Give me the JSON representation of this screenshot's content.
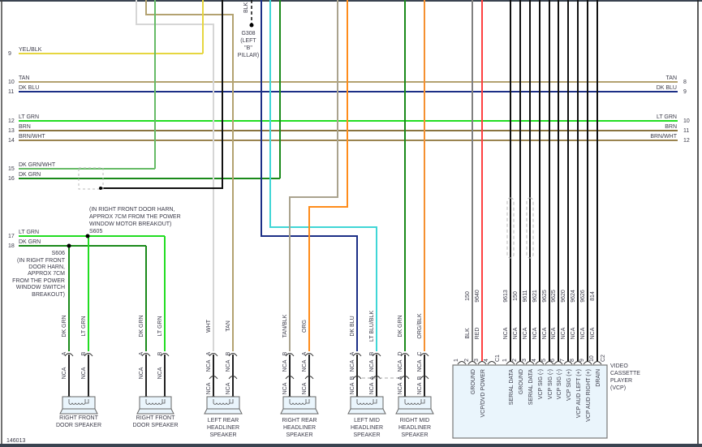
{
  "figure_id": "146013",
  "wire_colors": {
    "TAN": "#b3a270",
    "BRN": "#8a7440",
    "BRN/WHT": "#9a8450",
    "DK BLU": "#1c2f86",
    "LT GRN": "#22dd22",
    "DK GRN": "#1a8a1a",
    "DK GRN/WHT": "#66bb66",
    "YEL/BLK": "#e6d640",
    "WHT": "#d6d6d6",
    "ORG": "#ff8c1a",
    "ORG/BLK": "#f59030",
    "LT BLU/BLK": "#40d6d6",
    "TAN/BLK": "#aaa38e",
    "BLK": "#111111",
    "GRAY": "#808080",
    "RED": "#ff4040"
  },
  "harness_left": [
    {
      "pin": "9",
      "label": "YEL/BLK"
    },
    {
      "pin": "10",
      "label": "TAN"
    },
    {
      "pin": "11",
      "label": "DK BLU"
    },
    {
      "pin": "12",
      "label": "LT GRN"
    },
    {
      "pin": "13",
      "label": "BRN"
    },
    {
      "pin": "14",
      "label": "BRN/WHT"
    },
    {
      "pin": "15",
      "label": "DK GRN/WHT"
    },
    {
      "pin": "16",
      "label": "DK GRN"
    },
    {
      "pin": "17",
      "label": "LT GRN"
    },
    {
      "pin": "18",
      "label": "DK GRN"
    }
  ],
  "harness_right": [
    {
      "pin": "8",
      "label": "TAN"
    },
    {
      "pin": "9",
      "label": "DK BLU"
    },
    {
      "pin": "10",
      "label": "LT GRN"
    },
    {
      "pin": "11",
      "label": "BRN"
    },
    {
      "pin": "12",
      "label": "BRN/WHT"
    }
  ],
  "ground": {
    "wire": "BLK",
    "id": "G308",
    "note": [
      "(LEFT",
      "\"B\"",
      "PILLAR)"
    ]
  },
  "splice_s605": {
    "id": "S605",
    "note": [
      "(IN RIGHT FRONT DOOR HARN,",
      "APPROX 7CM FROM THE POWER",
      "WINDOW MOTOR BREAKOUT)"
    ]
  },
  "splice_s606": {
    "id": "S606",
    "note": [
      "(IN RIGHT FRONT",
      "DOOR HARN,",
      "APPROX 7CM",
      "FROM THE POWER",
      "WINDOW SWITCH",
      "BREAKOUT)"
    ]
  },
  "speakers": [
    {
      "name": [
        "RIGHT FRONT",
        "DOOR SPEAKER"
      ],
      "pins": [
        {
          "letter": "A",
          "color": "DK GRN",
          "lower": "NCA"
        },
        {
          "letter": "B",
          "color": "LT GRN",
          "lower": "NCA"
        }
      ]
    },
    {
      "name": [
        "RIGHT FRONT",
        "DOOR SPEAKER"
      ],
      "pins": [
        {
          "letter": "A",
          "color": "DK GRN",
          "lower": "NCA"
        },
        {
          "letter": "B",
          "color": "LT GRN",
          "lower": "NCA"
        }
      ]
    },
    {
      "name": [
        "LEFT REAR",
        "HEADLINER",
        "SPEAKER"
      ],
      "pins": [
        {
          "letter": "A",
          "color": "WHT",
          "mid": "NCA",
          "lower": "NCA"
        },
        {
          "letter": "B",
          "color": "TAN",
          "mid": "NCA",
          "lower": "NCA"
        }
      ]
    },
    {
      "name": [
        "RIGHT REAR",
        "HEADLINER",
        "SPEAKER"
      ],
      "pins": [
        {
          "letter": "B",
          "color": "TAN/BLK",
          "mid": "NCA",
          "lower": "NCA"
        },
        {
          "letter": "A",
          "color": "ORG",
          "mid": "NCA",
          "lower": "NCA"
        }
      ]
    },
    {
      "name": [
        "LEFT MID",
        "HEADLINER",
        "SPEAKER"
      ],
      "pins": [
        {
          "letter": "A",
          "color": "DK BLU",
          "mid": "NCA",
          "lower": "NCA",
          "lower_letter": "B"
        },
        {
          "letter": "B",
          "color": "LT BLU/BLK",
          "mid": "NCA",
          "lower": "NCA",
          "lower_letter": "A"
        }
      ]
    },
    {
      "name": [
        "RIGHT MID",
        "HEADLINER",
        "SPEAKER"
      ],
      "pins": [
        {
          "letter": "D",
          "color": "DK GRN",
          "mid": "NCA",
          "lower": "NCA",
          "lower_letter": "A"
        },
        {
          "letter": "C",
          "color": "ORG/BLK",
          "mid": "NCA",
          "lower": "NCA",
          "lower_letter": "B"
        }
      ]
    }
  ],
  "vcp": {
    "title": [
      "VIDEO",
      "CASSETTE",
      "PLAYER",
      "(VCP)"
    ],
    "connector_c1": "C1",
    "connector_c2": "C2",
    "c1_pins": [
      {
        "pin": "1",
        "circuit": "",
        "color": "",
        "function": ""
      },
      {
        "pin": "2",
        "circuit": "150",
        "color": "BLK",
        "function": "GROUND"
      },
      {
        "pin": "3",
        "circuit": "9640",
        "color": "RED",
        "function": "VCP/DVD POWER"
      },
      {
        "pin": "4",
        "circuit": "",
        "color": "",
        "function": ""
      }
    ],
    "c2_pins": [
      {
        "pin": "1",
        "circuit": "9613",
        "color": "NCA",
        "function": "SERIAL DATA"
      },
      {
        "pin": "2",
        "circuit": "150",
        "color": "NCA",
        "function": "GROUND"
      },
      {
        "pin": "3",
        "circuit": "9611",
        "color": "NCA",
        "function": "SERIAL DATA"
      },
      {
        "pin": "4",
        "circuit": "9621",
        "color": "NCA",
        "function": "VCP SIG (-)"
      },
      {
        "pin": "5",
        "circuit": "9625",
        "color": "NCA",
        "function": "VCP SIG (-)"
      },
      {
        "pin": "6",
        "circuit": "9625",
        "color": "NCA",
        "function": "VCP SIG (-)"
      },
      {
        "pin": "7",
        "circuit": "9620",
        "color": "NCA",
        "function": "VCP SIG (+)"
      },
      {
        "pin": "8",
        "circuit": "9624",
        "color": "NCA",
        "function": "VCP AUD LEFT (+)"
      },
      {
        "pin": "9",
        "circuit": "9626",
        "color": "NCA",
        "function": "VCP AUD RIGHT (+)"
      },
      {
        "pin": "10",
        "circuit": "814",
        "color": "NCA",
        "function": "DRAIN"
      }
    ]
  }
}
